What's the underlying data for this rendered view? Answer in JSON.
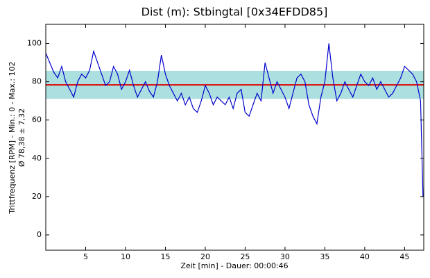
{
  "chart_data": {
    "type": "line",
    "title": "Dist (m): Stbingtal [0x34EFDD85]",
    "x_label": "Zeit [min] - Dauer: 00:00:46",
    "y_label": [
      "Trittfrequenz [RPM] - Min.: 0 - Max.: 102",
      "Ø 78,38 ± 7,32"
    ],
    "mean": 78.38,
    "std": 7.32,
    "mean_color": "#e00000",
    "band_color": "#9ed9d9",
    "x": [
      0,
      0.5,
      1,
      1.5,
      2,
      2.5,
      3,
      3.5,
      4,
      4.5,
      5,
      5.5,
      6,
      6.5,
      7,
      7.5,
      8,
      8.5,
      9,
      9.5,
      10,
      10.5,
      11,
      11.5,
      12,
      12.5,
      13,
      13.5,
      14,
      14.5,
      15,
      15.5,
      16,
      16.5,
      17,
      17.5,
      18,
      18.5,
      19,
      19.5,
      20,
      20.5,
      21,
      21.5,
      22,
      22.5,
      23,
      23.5,
      24,
      24.5,
      25,
      25.5,
      26,
      26.5,
      27,
      27.5,
      28,
      28.5,
      29,
      29.5,
      30,
      30.5,
      31,
      31.5,
      32,
      32.5,
      33,
      33.5,
      34,
      34.5,
      35,
      35.5,
      36,
      36.5,
      37,
      37.5,
      38,
      38.5,
      39,
      39.5,
      40,
      40.5,
      41,
      41.5,
      42,
      42.5,
      43,
      43.5,
      44,
      44.5,
      45,
      45.5,
      46,
      46.5,
      47,
      47.3
    ],
    "series": [
      {
        "name": "Trittfrequenz",
        "color": "#0000cc",
        "values": [
          95,
          90,
          85,
          82,
          88,
          80,
          76,
          72,
          80,
          84,
          82,
          86,
          96,
          90,
          84,
          78,
          80,
          88,
          84,
          76,
          80,
          86,
          78,
          72,
          76,
          80,
          75,
          72,
          80,
          94,
          84,
          78,
          74,
          70,
          74,
          68,
          72,
          66,
          64,
          70,
          78,
          74,
          68,
          72,
          70,
          68,
          72,
          66,
          74,
          76,
          64,
          62,
          68,
          74,
          70,
          90,
          82,
          74,
          80,
          76,
          72,
          66,
          74,
          82,
          84,
          80,
          68,
          62,
          58,
          72,
          80,
          100,
          82,
          70,
          74,
          80,
          76,
          72,
          78,
          84,
          80,
          78,
          82,
          76,
          80,
          76,
          72,
          74,
          78,
          82,
          88,
          86,
          84,
          80,
          70,
          20
        ]
      }
    ],
    "xlim": [
      0,
      47.4
    ],
    "ylim": [
      -8,
      110
    ],
    "xticks": [
      5,
      10,
      15,
      20,
      25,
      30,
      35,
      40,
      45
    ],
    "yticks": [
      0,
      20,
      40,
      60,
      80,
      100
    ]
  }
}
